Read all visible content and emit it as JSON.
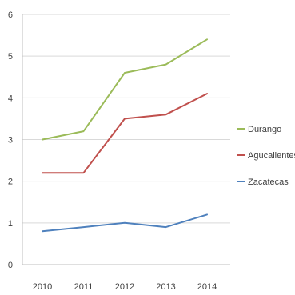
{
  "chart_data": {
    "type": "line",
    "title": "",
    "xlabel": "",
    "ylabel": "",
    "categories": [
      "2010",
      "2011",
      "2012",
      "2013",
      "2014"
    ],
    "ylim": [
      0,
      6
    ],
    "yticks": [
      "0",
      "1",
      "2",
      "3",
      "4",
      "5",
      "6"
    ],
    "grid": true,
    "legend_position": "right",
    "series": [
      {
        "name": "Durango",
        "color": "#9bbb59",
        "values": [
          3.0,
          3.2,
          4.6,
          4.8,
          5.4
        ]
      },
      {
        "name": "Agucalientesa",
        "color": "#c0504d",
        "values": [
          2.2,
          2.2,
          3.5,
          3.6,
          4.1
        ]
      },
      {
        "name": "Zacatecas",
        "color": "#4f81bd",
        "values": [
          0.8,
          0.9,
          1.0,
          0.9,
          1.2
        ]
      }
    ]
  }
}
